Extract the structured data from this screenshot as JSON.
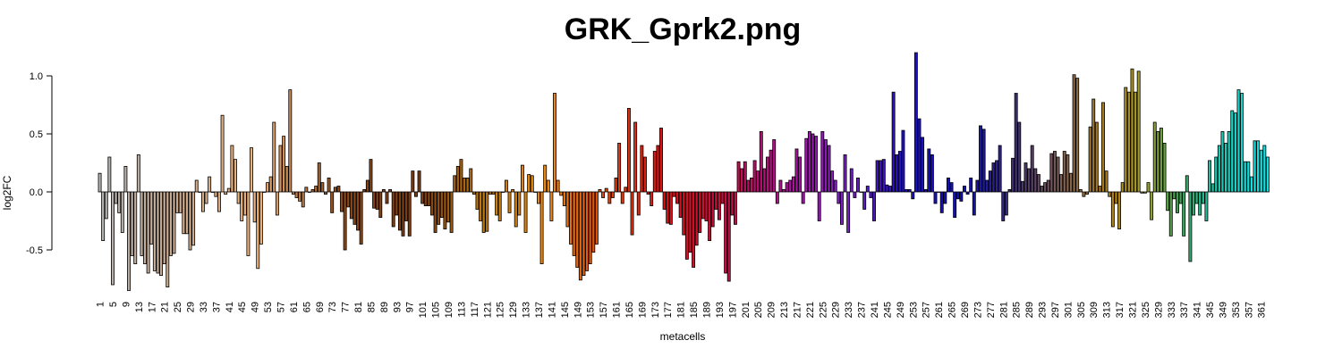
{
  "chart_data": {
    "type": "bar",
    "title": "GRK_Gprk2.png",
    "xlabel": "metacells",
    "ylabel": "log2FC",
    "ylim": [
      -1.0,
      1.2
    ],
    "y_ticks": [
      -0.5,
      0.0,
      0.5,
      1.0
    ],
    "y_tick_labels": [
      "-0.5",
      "0.0",
      "0.5",
      "1.0"
    ],
    "x_tick_every": 4,
    "grid": false,
    "legend": "none",
    "color_stops": [
      {
        "at": 1,
        "color": "#b3b3b3"
      },
      {
        "at": 25,
        "color": "#c9a98c"
      },
      {
        "at": 50,
        "color": "#f0b37a"
      },
      {
        "at": 75,
        "color": "#8b4a1a"
      },
      {
        "at": 100,
        "color": "#7a3a10"
      },
      {
        "at": 120,
        "color": "#c07a10"
      },
      {
        "at": 140,
        "color": "#f08a10"
      },
      {
        "at": 155,
        "color": "#e0500a"
      },
      {
        "at": 175,
        "color": "#e01010"
      },
      {
        "at": 195,
        "color": "#c01040"
      },
      {
        "at": 215,
        "color": "#b010a0"
      },
      {
        "at": 230,
        "color": "#8020c0"
      },
      {
        "at": 250,
        "color": "#2010c0"
      },
      {
        "at": 270,
        "color": "#1010b0"
      },
      {
        "at": 285,
        "color": "#403070"
      },
      {
        "at": 300,
        "color": "#806050"
      },
      {
        "at": 315,
        "color": "#b08010"
      },
      {
        "at": 325,
        "color": "#a0a030"
      },
      {
        "at": 335,
        "color": "#40a050"
      },
      {
        "at": 345,
        "color": "#20c0a0"
      },
      {
        "at": 358,
        "color": "#10e0e0"
      }
    ],
    "values": [
      0.16,
      -0.42,
      -0.23,
      0.3,
      -0.8,
      -0.1,
      -0.18,
      -0.35,
      0.22,
      -0.85,
      -0.55,
      -0.62,
      0.32,
      -0.55,
      -0.62,
      -0.7,
      -0.45,
      -0.68,
      -0.7,
      -0.72,
      -0.62,
      -0.82,
      -0.55,
      -0.53,
      -0.18,
      -0.18,
      -0.36,
      -0.36,
      -0.5,
      -0.46,
      0.1,
      0,
      -0.17,
      -0.1,
      0.13,
      0,
      -0.04,
      -0.17,
      0.66,
      -0.02,
      0.03,
      0.4,
      0.28,
      -0.1,
      -0.25,
      -0.2,
      -0.55,
      0.38,
      -0.26,
      -0.66,
      -0.45,
      0,
      0.08,
      0.13,
      0.6,
      -0.2,
      0.4,
      0.48,
      0.22,
      0.88,
      -0.02,
      -0.05,
      -0.08,
      -0.13,
      0.04,
      0,
      0.02,
      0.05,
      0.25,
      0.08,
      -0.02,
      0.12,
      -0.18,
      0.04,
      0.05,
      -0.17,
      -0.5,
      -0.13,
      -0.23,
      -0.28,
      -0.33,
      -0.45,
      0.02,
      0.1,
      0.28,
      -0.14,
      -0.15,
      -0.22,
      0.02,
      -0.1,
      0.02,
      -0.3,
      -0.2,
      -0.33,
      -0.38,
      -0.25,
      -0.38,
      0.18,
      -0.04,
      0.18,
      -0.1,
      -0.12,
      -0.12,
      -0.2,
      -0.35,
      -0.28,
      -0.22,
      -0.32,
      -0.26,
      -0.35,
      0.14,
      0.22,
      0.28,
      0.12,
      0.12,
      0.2,
      -0.02,
      -0.15,
      -0.25,
      -0.35,
      -0.34,
      -0.02,
      -0.02,
      -0.2,
      -0.25,
      0,
      0.1,
      -0.18,
      0.02,
      -0.3,
      -0.2,
      0.23,
      -0.35,
      0.15,
      0.14,
      0,
      -0.1,
      -0.62,
      0.23,
      0.1,
      -0.25,
      0.85,
      0.1,
      -0.03,
      -0.12,
      -0.3,
      -0.45,
      -0.55,
      -0.65,
      -0.76,
      -0.72,
      -0.68,
      -0.62,
      -0.52,
      -0.45,
      0.02,
      -0.05,
      0.03,
      -0.1,
      -0.05,
      0.12,
      0.42,
      -0.1,
      0.04,
      0.72,
      -0.37,
      0.6,
      -0.2,
      0.4,
      0.3,
      -0.02,
      -0.12,
      0.35,
      0.4,
      0.55,
      -0.15,
      -0.27,
      -0.28,
      -0.04,
      -0.1,
      -0.22,
      -0.37,
      -0.58,
      -0.52,
      -0.65,
      -0.46,
      -0.35,
      -0.23,
      -0.25,
      -0.42,
      -0.3,
      -0.15,
      -0.24,
      -0.1,
      -0.7,
      -0.77,
      -0.2,
      -0.28,
      0.26,
      0.2,
      0.26,
      0.1,
      0.12,
      0.27,
      0.18,
      0.52,
      0.2,
      0.3,
      0.36,
      0.45,
      -0.1,
      0.1,
      0.02,
      0.08,
      0.1,
      0.13,
      0.37,
      0.3,
      -0.1,
      0.46,
      0.52,
      0.5,
      0.48,
      -0.25,
      0.52,
      0.45,
      0.4,
      0.18,
      0.1,
      -0.1,
      -0.28,
      0.32,
      -0.35,
      0.2,
      -0.05,
      0.12,
      0,
      -0.15,
      0.05,
      -0.05,
      -0.25,
      0.27,
      0.27,
      0.28,
      0.06,
      0.05,
      0.86,
      0.32,
      0.35,
      0.53,
      0.02,
      0.02,
      -0.06,
      1.2,
      0.63,
      0.47,
      0.02,
      0.37,
      0.32,
      -0.1,
      0,
      -0.18,
      -0.1,
      0.12,
      0.08,
      -0.22,
      -0.06,
      -0.08,
      0.05,
      -0.02,
      0.12,
      -0.2,
      0.1,
      0.57,
      0.54,
      0.1,
      0.18,
      0.25,
      0.27,
      0.4,
      -0.25,
      -0.2,
      0.02,
      0.29,
      0.85,
      0.6,
      0.09,
      0.25,
      0.2,
      0.4,
      0.2,
      0.15,
      0.05,
      0.08,
      0.1,
      0.33,
      0.35,
      0.3,
      0.15,
      0.35,
      0.32,
      0.16,
      1.01,
      0.98,
      0.02,
      -0.04,
      -0.02,
      0.56,
      0.8,
      0.6,
      0.05,
      0.77,
      0.18,
      -0.04,
      -0.3,
      -0.1,
      -0.32,
      0.08,
      0.9,
      0.86,
      1.06,
      0.86,
      1.04,
      -0.01,
      -0.01,
      0.08,
      -0.24,
      0.6,
      0.52,
      0.55,
      0.42,
      -0.16,
      -0.38,
      -0.06,
      -0.18,
      -0.1,
      -0.38,
      0.14,
      -0.6,
      -0.2,
      -0.1,
      -0.2,
      -0.1,
      -0.25,
      0.27,
      0.07,
      0.3,
      0.4,
      0.52,
      0.42,
      0.52,
      0.7,
      0.68,
      0.88,
      0.85,
      0.26,
      0.26,
      0.13,
      0.44,
      0.44,
      0.36,
      0.4,
      0.3
    ]
  }
}
